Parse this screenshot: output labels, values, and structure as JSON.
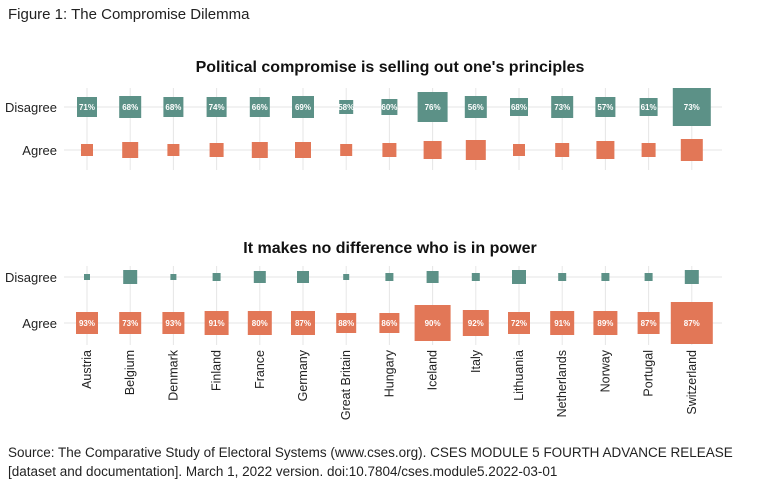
{
  "figure_title": "Figure 1: The Compromise Dilemma",
  "source": "Source: The Comparative Study of Electoral Systems (www.cses.org). CSES MODULE 5 FOURTH ADVANCE RELEASE [dataset and documentation]. March 1, 2022 version. doi:10.7804/cses.module5.2022-03-01",
  "colors": {
    "disagree": "#5c9187",
    "agree": "#e27757",
    "label": "#ffffff",
    "grid": "#e6e6e6"
  },
  "chart_data": [
    {
      "type": "heatmap",
      "title": "Political compromise is selling out one's principles",
      "rows": [
        "Disagree",
        "Agree"
      ],
      "categories": [
        "Austria",
        "Belgium",
        "Denmark",
        "Finland",
        "France",
        "Germany",
        "Great Britain",
        "Hungary",
        "Iceland",
        "Italy",
        "Lithuania",
        "Netherlands",
        "Norway",
        "Portugal",
        "Switzerland"
      ],
      "series": [
        {
          "name": "Disagree",
          "labels": [
            "71%",
            "68%",
            "68%",
            "74%",
            "66%",
            "69%",
            "58%",
            "60%",
            "76%",
            "56%",
            "68%",
            "73%",
            "57%",
            "61%",
            "73%"
          ],
          "size": [
            10,
            11,
            10,
            10,
            10,
            11,
            7,
            8,
            15,
            11,
            9,
            11,
            10,
            9,
            19
          ]
        },
        {
          "name": "Agree",
          "labels": [
            "",
            "",
            "",
            "",
            "",
            "",
            "",
            "",
            "",
            "",
            "",
            "",
            "",
            "",
            ""
          ],
          "size": [
            6,
            8,
            6,
            7,
            8,
            8,
            6,
            7,
            9,
            10,
            6,
            7,
            9,
            7,
            11
          ]
        }
      ]
    },
    {
      "type": "heatmap",
      "title": "It makes no difference who is in power",
      "rows": [
        "Disagree",
        "Agree"
      ],
      "categories": [
        "Austria",
        "Belgium",
        "Denmark",
        "Finland",
        "France",
        "Germany",
        "Great Britain",
        "Hungary",
        "Iceland",
        "Italy",
        "Lithuania",
        "Netherlands",
        "Norway",
        "Portugal",
        "Switzerland"
      ],
      "series": [
        {
          "name": "Disagree",
          "labels": [
            "",
            "",
            "",
            "",
            "",
            "",
            "",
            "",
            "",
            "",
            "",
            "",
            "",
            "",
            ""
          ],
          "size": [
            3,
            7,
            3,
            4,
            6,
            6,
            3,
            4,
            6,
            4,
            7,
            4,
            4,
            4,
            7
          ]
        },
        {
          "name": "Agree",
          "labels": [
            "93%",
            "73%",
            "93%",
            "91%",
            "80%",
            "87%",
            "88%",
            "86%",
            "90%",
            "92%",
            "72%",
            "91%",
            "89%",
            "87%",
            "87%"
          ],
          "size": [
            11,
            11,
            11,
            12,
            12,
            12,
            10,
            10,
            18,
            13,
            11,
            12,
            12,
            11,
            21
          ]
        }
      ]
    }
  ]
}
